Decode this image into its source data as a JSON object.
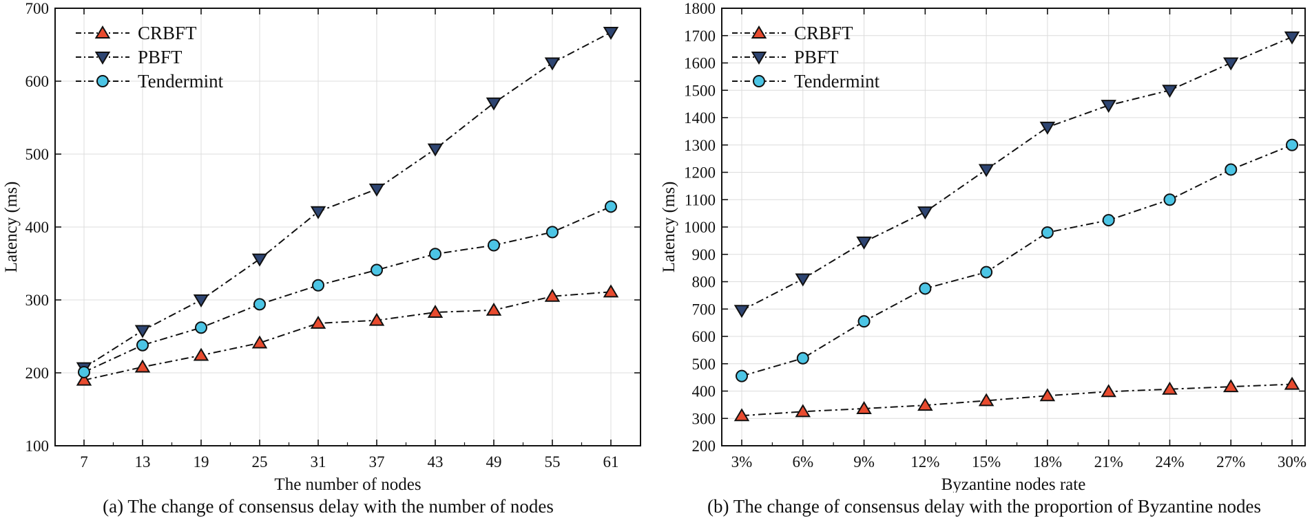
{
  "figure": {
    "colors": {
      "line": "#111111",
      "grid": "#dcdcdc",
      "axis": "#111111",
      "background": "#ffffff",
      "crbft_marker": "#e84b2f",
      "pbft_marker": "#2e4572",
      "tendermint_marker": "#4cc5e5"
    }
  },
  "chart_data": [
    {
      "type": "line",
      "id": "a",
      "caption": "(a) The change of consensus delay with the number of nodes",
      "xlabel": "The number of nodes",
      "ylabel": "Latency (ms)",
      "categories": [
        "7",
        "13",
        "19",
        "25",
        "31",
        "37",
        "43",
        "49",
        "55",
        "61"
      ],
      "ylim": [
        100,
        700
      ],
      "ytick_step": 100,
      "grid": true,
      "legend_position": "top-left",
      "series": [
        {
          "name": "CRBFT",
          "marker": "triangle-up",
          "color": "#e84b2f",
          "values": [
            190,
            208,
            224,
            241,
            268,
            272,
            283,
            286,
            305,
            311
          ]
        },
        {
          "name": "PBFT",
          "marker": "triangle-down",
          "color": "#2e4572",
          "values": [
            207,
            258,
            300,
            356,
            421,
            452,
            507,
            570,
            625,
            667
          ]
        },
        {
          "name": "Tendermint",
          "marker": "circle",
          "color": "#4cc5e5",
          "values": [
            201,
            238,
            262,
            294,
            320,
            341,
            363,
            375,
            393,
            428
          ]
        }
      ]
    },
    {
      "type": "line",
      "id": "b",
      "caption": "(b) The change of consensus delay with the proportion of Byzantine nodes",
      "xlabel": "Byzantine nodes rate",
      "ylabel": "Latency (ms)",
      "categories": [
        "3%",
        "6%",
        "9%",
        "12%",
        "15%",
        "18%",
        "21%",
        "24%",
        "27%",
        "30%"
      ],
      "ylim": [
        200,
        1800
      ],
      "ytick_step": 100,
      "grid": true,
      "legend_position": "top-left",
      "series": [
        {
          "name": "CRBFT",
          "marker": "triangle-up",
          "color": "#e84b2f",
          "values": [
            310,
            325,
            336,
            348,
            365,
            383,
            398,
            407,
            416,
            425
          ]
        },
        {
          "name": "PBFT",
          "marker": "triangle-down",
          "color": "#2e4572",
          "values": [
            695,
            810,
            945,
            1055,
            1210,
            1365,
            1445,
            1500,
            1600,
            1695
          ]
        },
        {
          "name": "Tendermint",
          "marker": "circle",
          "color": "#4cc5e5",
          "values": [
            455,
            520,
            655,
            775,
            835,
            980,
            1025,
            1100,
            1210,
            1300
          ]
        }
      ]
    }
  ]
}
